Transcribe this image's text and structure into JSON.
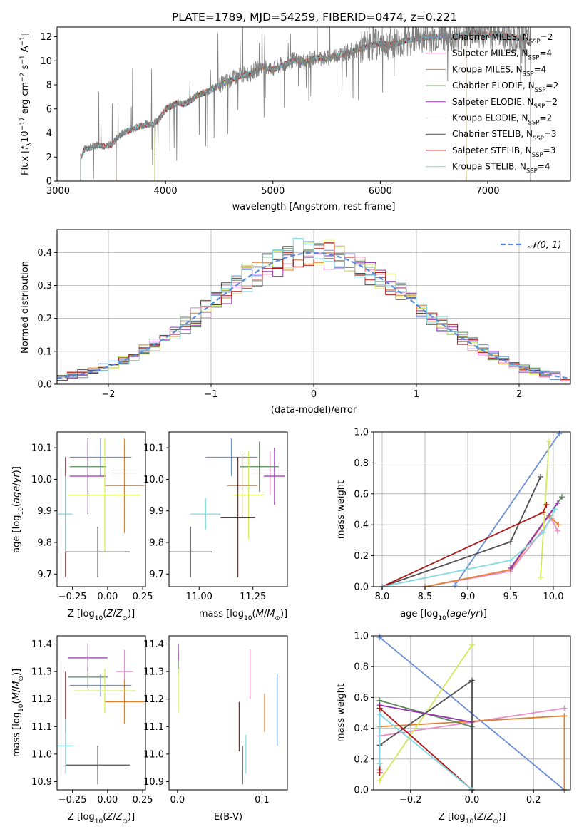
{
  "title": "PLATE=1789, MJD=54259, FIBERID=0474, z=0.221",
  "colors": {
    "chabrier_miles": "#6a8fd8",
    "salpeter_miles": "#e88fc8",
    "kroupa_miles": "#e08030",
    "chabrier_elodie": "#5a8a5a",
    "salpeter_elodie": "#9932b0",
    "kroupa_elodie": "#d4e85a",
    "chabrier_stelib": "#505050",
    "salpeter_stelib": "#b01818",
    "kroupa_stelib": "#80d8e0",
    "gauss": "#5b8ad8"
  },
  "chart_data": [
    {
      "type": "line",
      "xlabel": "wavelength [Angstrom, rest frame]",
      "ylabel": "Flux [f_λ 10^-17 erg cm^-2 s^-1 A^-1]",
      "xlim": [
        2990,
        7770
      ],
      "ylim": [
        0,
        12.8
      ],
      "xticks": [
        3000,
        4000,
        5000,
        6000,
        7000
      ],
      "yticks": [
        0,
        2,
        4,
        6,
        8,
        10,
        12
      ],
      "data_series": {
        "x": [
          3210,
          3250,
          3300,
          3350,
          3400,
          3450,
          3500,
          3550,
          3600,
          3700,
          3800,
          3900,
          3950,
          4000,
          4100,
          4200,
          4300,
          4400,
          4500,
          4600,
          4700,
          4800,
          4900,
          5000,
          5100,
          5200,
          5300,
          5400,
          5500,
          5600,
          5700,
          5800,
          5900,
          6000,
          6100,
          6200,
          6300,
          6400,
          6500,
          6600,
          6700,
          6800,
          6900,
          7000,
          7100,
          7200,
          7300,
          7400
        ],
        "y": [
          2.0,
          2.7,
          2.8,
          3.0,
          3.0,
          2.9,
          3.1,
          3.6,
          4.0,
          4.4,
          4.7,
          4.8,
          5.3,
          6.0,
          6.5,
          6.5,
          7.2,
          7.5,
          8.0,
          8.4,
          8.8,
          9.0,
          9.6,
          9.3,
          9.7,
          10.1,
          9.9,
          10.3,
          10.2,
          10.5,
          10.7,
          11.0,
          11.3,
          11.5,
          11.4,
          11.6,
          11.8,
          12.0,
          12.0,
          12.1,
          12.0,
          12.3,
          12.4,
          12.2,
          12.3,
          12.0,
          11.9,
          11.5
        ]
      },
      "models": [
        {
          "name": "Chabrier MILES",
          "nssp": "2",
          "color": "#6a8fd8",
          "start": 3540,
          "end": 7400
        },
        {
          "name": "Salpeter MILES",
          "nssp": "4",
          "color": "#e88fc8",
          "start": 3540,
          "end": 7400
        },
        {
          "name": "Kroupa MILES",
          "nssp": "4",
          "color": "#e08030",
          "start": 3540,
          "end": 7400
        },
        {
          "name": "Chabrier ELODIE",
          "nssp": "2",
          "color": "#5a8a5a",
          "start": 3900,
          "end": 6800
        },
        {
          "name": "Salpeter ELODIE",
          "nssp": "2",
          "color": "#9932b0",
          "start": 3900,
          "end": 6800
        },
        {
          "name": "Kroupa ELODIE",
          "nssp": "2",
          "color": "#d4e85a",
          "start": 3900,
          "end": 6800
        },
        {
          "name": "Chabrier STELIB",
          "nssp": "3",
          "color": "#505050",
          "start": 3210,
          "end": 7400
        },
        {
          "name": "Salpeter STELIB",
          "nssp": "3",
          "color": "#b01818",
          "start": 3210,
          "end": 7400
        },
        {
          "name": "Kroupa STELIB",
          "nssp": "4",
          "color": "#80d8e0",
          "start": 3210,
          "end": 7400
        }
      ]
    },
    {
      "type": "histogram",
      "xlabel": "(data-model)/error",
      "ylabel": "Normed distribution",
      "xlim": [
        -2.5,
        2.5
      ],
      "ylim": [
        0,
        0.47
      ],
      "xticks": [
        -2,
        -1,
        0,
        1,
        2
      ],
      "yticks": [
        0.0,
        0.1,
        0.2,
        0.3,
        0.4
      ],
      "legend": "𝒩(0, 1)",
      "bin_width": 0.1
    },
    {
      "type": "scatter",
      "xlabel": "Z [log10(Z/Z⊙)]",
      "ylabel": "age  [log10(age/yr)]",
      "xlim": [
        -0.36,
        0.27
      ],
      "ylim": [
        9.66,
        10.15
      ],
      "xticks": [
        -0.25,
        0.0,
        0.25
      ],
      "yticks": [
        9.7,
        9.8,
        9.9,
        10.0,
        10.1
      ],
      "points": [
        {
          "color": "#6a8fd8",
          "x": -0.05,
          "xerr": 0.22,
          "y": 10.07,
          "yerr": 0.06
        },
        {
          "color": "#e88fc8",
          "x": 0.12,
          "xerr": 0.09,
          "y": 10.02,
          "yerr": 0.08
        },
        {
          "color": "#e08030",
          "x": 0.12,
          "xerr": 0.14,
          "y": 9.98,
          "yerr": 0.15
        },
        {
          "color": "#5a8a5a",
          "x": -0.14,
          "xerr": 0.13,
          "y": 10.04,
          "yerr": 0.08
        },
        {
          "color": "#9932b0",
          "x": -0.14,
          "xerr": 0.13,
          "y": 10.01,
          "yerr": 0.12
        },
        {
          "color": "#d4e85a",
          "x": -0.02,
          "xerr": 0.26,
          "y": 9.95,
          "yerr": 0.18
        },
        {
          "color": "#505050",
          "x": -0.07,
          "xerr": 0.23,
          "y": 9.77,
          "yerr": 0.08
        },
        {
          "color": "#b01818",
          "x": -0.3,
          "xerr": 0.0,
          "y": 9.88,
          "yerr": 0.19
        },
        {
          "color": "#80d8e0",
          "x": -0.3,
          "xerr": 0.05,
          "y": 9.89,
          "yerr": 0.12
        }
      ]
    },
    {
      "type": "scatter",
      "xlabel": "mass [log10(M/M⊙)]",
      "ylabel": "",
      "xlim": [
        10.86,
        11.41
      ],
      "ylim": [
        9.66,
        10.15
      ],
      "xticks": [
        11.0,
        11.25
      ],
      "yticks": [
        9.7,
        9.8,
        9.9,
        10.0,
        10.1
      ],
      "points": [
        {
          "color": "#6a8fd8",
          "x": 11.15,
          "xerr": 0.12,
          "y": 10.07,
          "yerr": 0.06
        },
        {
          "color": "#e88fc8",
          "x": 11.33,
          "xerr": 0.08,
          "y": 10.02,
          "yerr": 0.07
        },
        {
          "color": "#e08030",
          "x": 11.2,
          "xerr": 0.07,
          "y": 9.98,
          "yerr": 0.1
        },
        {
          "color": "#5a8a5a",
          "x": 11.28,
          "xerr": 0.09,
          "y": 10.04,
          "yerr": 0.08
        },
        {
          "color": "#9932b0",
          "x": 11.35,
          "xerr": 0.05,
          "y": 10.01,
          "yerr": 0.09
        },
        {
          "color": "#d4e85a",
          "x": 11.23,
          "xerr": 0.07,
          "y": 9.95,
          "yerr": 0.14
        },
        {
          "color": "#505050",
          "x": 10.96,
          "xerr": 0.1,
          "y": 9.77,
          "yerr": 0.08
        },
        {
          "color": "#b01818",
          "x": 11.18,
          "xerr": 0.08,
          "y": 9.88,
          "yerr": 0.19
        },
        {
          "color": "#80d8e0",
          "x": 11.03,
          "xerr": 0.07,
          "y": 9.89,
          "yerr": 0.05
        }
      ]
    },
    {
      "type": "line",
      "xlabel": "age  [log10(age/yr)]",
      "ylabel": "mass weight",
      "xlim": [
        7.9,
        10.2
      ],
      "ylim": [
        0,
        1.0
      ],
      "xticks": [
        8.0,
        8.5,
        9.0,
        9.5,
        10.0
      ],
      "yticks": [
        0.0,
        0.2,
        0.4,
        0.6,
        0.8,
        1.0
      ],
      "series": [
        {
          "color": "#6a8fd8",
          "x": [
            8.85,
            10.07
          ],
          "y": [
            0.01,
            0.99
          ]
        },
        {
          "color": "#e88fc8",
          "x": [
            8.5,
            9.5,
            9.98,
            10.05
          ],
          "y": [
            0.0,
            0.1,
            0.44,
            0.36
          ]
        },
        {
          "color": "#e08030",
          "x": [
            8.5,
            9.5,
            9.95,
            10.06
          ],
          "y": [
            0.0,
            0.11,
            0.46,
            0.4
          ]
        },
        {
          "color": "#5a8a5a",
          "x": [
            9.5,
            10.1
          ],
          "y": [
            0.12,
            0.58
          ]
        },
        {
          "color": "#9932b0",
          "x": [
            9.5,
            10.05
          ],
          "y": [
            0.12,
            0.54
          ]
        },
        {
          "color": "#d4e85a",
          "x": [
            9.85,
            9.95
          ],
          "y": [
            0.06,
            0.94
          ]
        },
        {
          "color": "#505050",
          "x": [
            8.0,
            9.5,
            9.85
          ],
          "y": [
            0.0,
            0.29,
            0.71
          ]
        },
        {
          "color": "#b01818",
          "x": [
            8.0,
            9.88,
            9.92
          ],
          "y": [
            0.0,
            0.48,
            0.53
          ]
        },
        {
          "color": "#80d8e0",
          "x": [
            8.0,
            9.5,
            9.88,
            10.02
          ],
          "y": [
            0.0,
            0.17,
            0.35,
            0.5
          ]
        }
      ]
    },
    {
      "type": "scatter",
      "xlabel": "Z [log10(Z/Z⊙)]",
      "ylabel": "mass [log10(M/M⊙)]",
      "xlim": [
        -0.36,
        0.27
      ],
      "ylim": [
        10.87,
        11.43
      ],
      "xticks": [
        -0.25,
        0.0,
        0.25
      ],
      "yticks": [
        10.9,
        11.0,
        11.1,
        11.2,
        11.3,
        11.4
      ],
      "points": [
        {
          "color": "#6a8fd8",
          "x": -0.05,
          "xerr": 0.22,
          "y": 11.25,
          "yerr": 0.04
        },
        {
          "color": "#e88fc8",
          "x": 0.12,
          "xerr": 0.06,
          "y": 11.3,
          "yerr": 0.08
        },
        {
          "color": "#e08030",
          "x": 0.12,
          "xerr": 0.14,
          "y": 11.19,
          "yerr": 0.08
        },
        {
          "color": "#5a8a5a",
          "x": -0.14,
          "xerr": 0.14,
          "y": 11.28,
          "yerr": 0.04
        },
        {
          "color": "#9932b0",
          "x": -0.14,
          "xerr": 0.14,
          "y": 11.35,
          "yerr": 0.05
        },
        {
          "color": "#d4e85a",
          "x": -0.02,
          "xerr": 0.22,
          "y": 11.23,
          "yerr": 0.08
        },
        {
          "color": "#505050",
          "x": -0.07,
          "xerr": 0.23,
          "y": 10.96,
          "yerr": 0.07
        },
        {
          "color": "#b01818",
          "x": -0.3,
          "xerr": 0.0,
          "y": 11.19,
          "yerr": 0.11
        },
        {
          "color": "#80d8e0",
          "x": -0.3,
          "xerr": 0.06,
          "y": 11.03,
          "yerr": 0.1
        }
      ]
    },
    {
      "type": "scatter",
      "xlabel": "E(B-V)",
      "ylabel": "",
      "xlim": [
        -0.01,
        0.13
      ],
      "ylim": [
        10.87,
        11.43
      ],
      "xticks": [
        0.0,
        0.1
      ],
      "yticks": [
        10.9,
        11.0,
        11.1,
        11.2,
        11.3,
        11.4
      ],
      "points": [
        {
          "color": "#6a8fd8",
          "x": 0.118,
          "xerr": 0,
          "y": 11.16,
          "yerr": 0.13
        },
        {
          "color": "#e88fc8",
          "x": 0.086,
          "xerr": 0,
          "y": 11.29,
          "yerr": 0.09
        },
        {
          "color": "#e08030",
          "x": 0.103,
          "xerr": 0,
          "y": 11.15,
          "yerr": 0.07
        },
        {
          "color": "#5a8a5a",
          "x": 0.001,
          "xerr": 0,
          "y": 11.33,
          "yerr": 0.04
        },
        {
          "color": "#9932b0",
          "x": 0.001,
          "xerr": 0,
          "y": 11.37,
          "yerr": 0.03
        },
        {
          "color": "#d4e85a",
          "x": 0.001,
          "xerr": 0,
          "y": 11.23,
          "yerr": 0.08
        },
        {
          "color": "#505050",
          "x": 0.077,
          "xerr": 0,
          "y": 10.96,
          "yerr": 0.07
        },
        {
          "color": "#b01818",
          "x": 0.073,
          "xerr": 0,
          "y": 11.1,
          "yerr": 0.09
        },
        {
          "color": "#80d8e0",
          "x": 0.081,
          "xerr": 0,
          "y": 11.0,
          "yerr": 0.07
        }
      ]
    },
    {
      "type": "line",
      "xlabel": "Z [log10(Z/Z⊙)]",
      "ylabel": "mass weight",
      "xlim": [
        -0.32,
        0.32
      ],
      "ylim": [
        0,
        1.0
      ],
      "xticks": [
        -0.2,
        0.0,
        0.2
      ],
      "yticks": [
        0.0,
        0.2,
        0.4,
        0.6,
        0.8,
        1.0
      ],
      "series": [
        {
          "color": "#6a8fd8",
          "x": [
            -0.3,
            0.3
          ],
          "y": [
            0.99,
            0.0
          ]
        },
        {
          "color": "#e88fc8",
          "x": [
            -0.3,
            -0.3,
            0.3
          ],
          "y": [
            0.13,
            0.35,
            0.53
          ]
        },
        {
          "color": "#e08030",
          "x": [
            -0.3,
            -0.3,
            0.3,
            0.3
          ],
          "y": [
            0.11,
            0.41,
            0.48,
            0.0
          ]
        },
        {
          "color": "#5a8a5a",
          "x": [
            -0.3,
            0.0
          ],
          "y": [
            0.58,
            0.41
          ]
        },
        {
          "color": "#9932b0",
          "x": [
            -0.3,
            0.0
          ],
          "y": [
            0.55,
            0.44
          ]
        },
        {
          "color": "#d4e85a",
          "x": [
            -0.3,
            0.0
          ],
          "y": [
            0.06,
            0.94
          ]
        },
        {
          "color": "#505050",
          "x": [
            -0.3,
            0.0,
            0.0
          ],
          "y": [
            0.29,
            0.71,
            0.0
          ]
        },
        {
          "color": "#b01818",
          "x": [
            -0.3,
            -0.3,
            0.0
          ],
          "y": [
            0.11,
            0.53,
            0.0
          ]
        },
        {
          "color": "#80d8e0",
          "x": [
            -0.3,
            -0.3,
            0.0
          ],
          "y": [
            0.17,
            0.49,
            0.0
          ]
        }
      ]
    }
  ]
}
